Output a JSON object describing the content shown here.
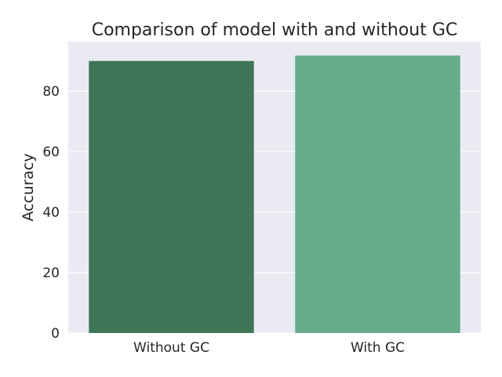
{
  "chart_data": {
    "type": "bar",
    "title": "Comparison of model with and without GC",
    "xlabel": "",
    "ylabel": "Accuracy",
    "categories": [
      "Without GC",
      "With GC"
    ],
    "values": [
      90.0,
      91.8
    ],
    "ylim": [
      0,
      96.4
    ],
    "yticks": [
      0,
      20,
      40,
      60,
      80
    ],
    "bar_colors": [
      "#3e7657",
      "#66ab8a"
    ],
    "background_color": "#eaeaf2",
    "grid": true,
    "grid_axis": "y",
    "grid_color": "#ffffff",
    "legend": false
  }
}
